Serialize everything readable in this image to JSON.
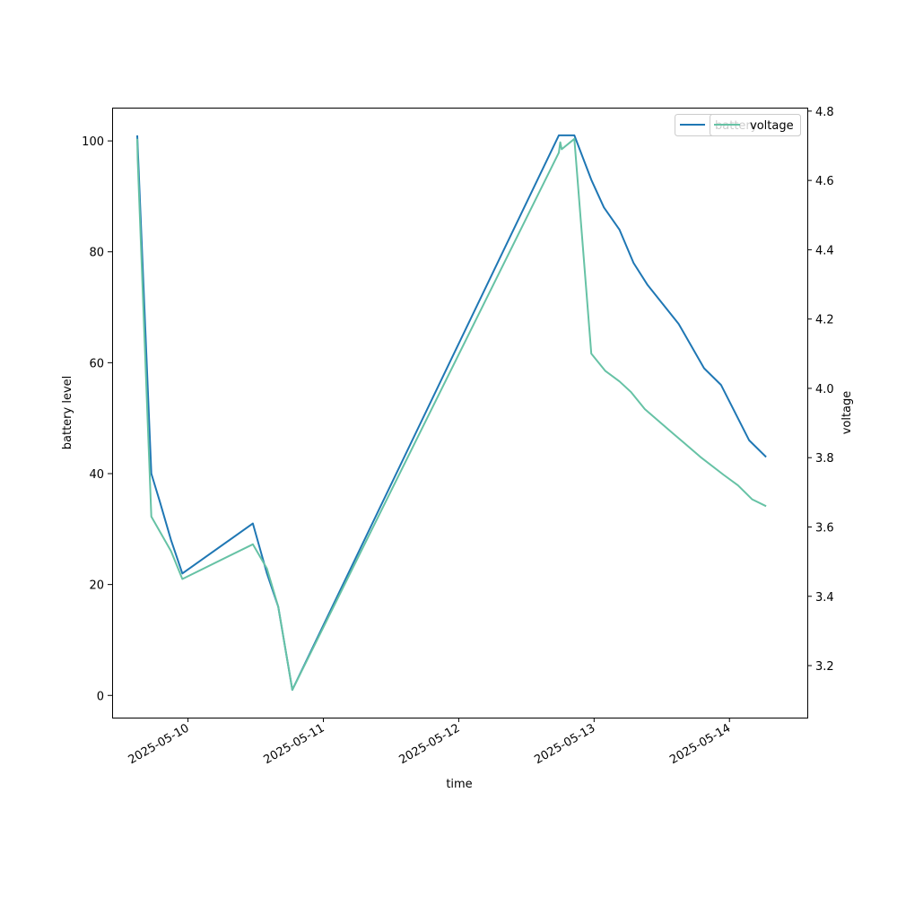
{
  "chart_data": {
    "type": "line",
    "xlabel": "time",
    "ylabel_left": "battery level",
    "ylabel_right": "voltage",
    "x_ticks": [
      "2025-05-10",
      "2025-05-11",
      "2025-05-12",
      "2025-05-13",
      "2025-05-14"
    ],
    "y_left_ticks": [
      0,
      20,
      40,
      60,
      80,
      100
    ],
    "y_left_lim": [
      -4,
      106
    ],
    "y_right_ticks": [
      3.2,
      3.4,
      3.6,
      3.8,
      4.0,
      4.2,
      4.4,
      4.6,
      4.8
    ],
    "y_right_lim": [
      3.05,
      4.81
    ],
    "x_lim": [
      "2025-05-09 10:33",
      "2025-05-14 13:48"
    ],
    "grid": false,
    "legend_placement": "top-right",
    "series": [
      {
        "name": "battery",
        "axis": "left",
        "color": "#1f77b4",
        "points": [
          [
            "2025-05-09 15:00",
            101
          ],
          [
            "2025-05-09 15:05",
            99
          ],
          [
            "2025-05-09 17:30",
            40
          ],
          [
            "2025-05-09 19:00",
            35
          ],
          [
            "2025-05-09 21:00",
            28
          ],
          [
            "2025-05-09 23:00",
            22
          ],
          [
            "2025-05-10 11:30",
            31
          ],
          [
            "2025-05-10 14:00",
            22
          ],
          [
            "2025-05-10 16:00",
            16
          ],
          [
            "2025-05-10 18:30",
            1
          ],
          [
            "2025-05-12 17:45",
            101
          ],
          [
            "2025-05-12 20:30",
            101
          ],
          [
            "2025-05-12 23:30",
            93
          ],
          [
            "2025-05-13 01:45",
            88
          ],
          [
            "2025-05-13 04:30",
            84
          ],
          [
            "2025-05-13 07:00",
            78
          ],
          [
            "2025-05-13 09:30",
            74
          ],
          [
            "2025-05-13 15:00",
            67
          ],
          [
            "2025-05-13 19:30",
            59
          ],
          [
            "2025-05-13 22:30",
            56
          ],
          [
            "2025-05-14 03:30",
            46
          ],
          [
            "2025-05-14 06:30",
            43
          ]
        ]
      },
      {
        "name": "voltage",
        "axis": "right",
        "color": "#66c2a5",
        "points": [
          [
            "2025-05-09 15:00",
            4.72
          ],
          [
            "2025-05-09 15:05",
            4.66
          ],
          [
            "2025-05-09 17:30",
            3.63
          ],
          [
            "2025-05-09 21:00",
            3.53
          ],
          [
            "2025-05-09 23:00",
            3.45
          ],
          [
            "2025-05-10 11:30",
            3.55
          ],
          [
            "2025-05-10 14:00",
            3.48
          ],
          [
            "2025-05-10 16:00",
            3.37
          ],
          [
            "2025-05-10 18:30",
            3.13
          ],
          [
            "2025-05-12 17:45",
            4.68
          ],
          [
            "2025-05-12 18:00",
            4.71
          ],
          [
            "2025-05-12 18:15",
            4.69
          ],
          [
            "2025-05-12 20:30",
            4.72
          ],
          [
            "2025-05-12 23:30",
            4.1
          ],
          [
            "2025-05-13 02:00",
            4.05
          ],
          [
            "2025-05-13 04:30",
            4.02
          ],
          [
            "2025-05-13 06:30",
            3.99
          ],
          [
            "2025-05-13 09:00",
            3.94
          ],
          [
            "2025-05-13 14:00",
            3.87
          ],
          [
            "2025-05-13 19:00",
            3.8
          ],
          [
            "2025-05-13 23:00",
            3.75
          ],
          [
            "2025-05-14 01:30",
            3.72
          ],
          [
            "2025-05-14 04:00",
            3.68
          ],
          [
            "2025-05-14 06:30",
            3.66
          ]
        ]
      }
    ],
    "legends": [
      {
        "label": "battery",
        "color": "#1f77b4"
      },
      {
        "label": "voltage",
        "color": "#66c2a5"
      }
    ]
  }
}
